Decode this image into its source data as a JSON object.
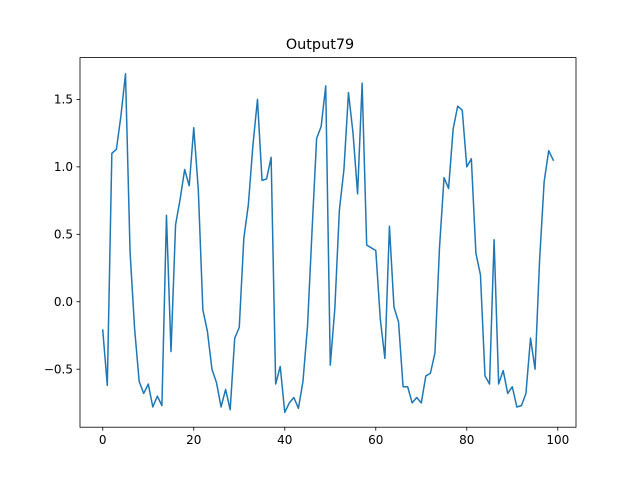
{
  "chart_data": {
    "type": "line",
    "title": "Output79",
    "xlabel": "",
    "ylabel": "",
    "xlim": [
      -5,
      104
    ],
    "ylim": [
      -0.93,
      1.81
    ],
    "x_ticks": [
      0,
      20,
      40,
      60,
      80,
      100
    ],
    "y_ticks": [
      -0.5,
      0.0,
      0.5,
      1.0,
      1.5
    ],
    "y_tick_labels": [
      "−0.5",
      "0.0",
      "0.5",
      "1.0",
      "1.5"
    ],
    "grid": false,
    "legend": "none",
    "series": [
      {
        "color": "#1f77b4",
        "x": [
          0,
          1,
          2,
          3,
          4,
          5,
          6,
          7,
          8,
          9,
          10,
          11,
          12,
          13,
          14,
          15,
          16,
          17,
          18,
          19,
          20,
          21,
          22,
          23,
          24,
          25,
          26,
          27,
          28,
          29,
          30,
          31,
          32,
          33,
          34,
          35,
          36,
          37,
          38,
          39,
          40,
          41,
          42,
          43,
          44,
          45,
          46,
          47,
          48,
          49,
          50,
          51,
          52,
          53,
          54,
          55,
          56,
          57,
          58,
          59,
          60,
          61,
          62,
          63,
          64,
          65,
          66,
          67,
          68,
          69,
          70,
          71,
          72,
          73,
          74,
          75,
          76,
          77,
          78,
          79,
          80,
          81,
          82,
          83,
          84,
          85,
          86,
          87,
          88,
          89,
          90,
          91,
          92,
          93,
          94,
          95,
          96,
          97,
          98,
          99
        ],
        "values": [
          -0.21,
          -0.62,
          1.1,
          1.13,
          1.38,
          1.69,
          0.37,
          -0.2,
          -0.59,
          -0.68,
          -0.61,
          -0.78,
          -0.7,
          -0.77,
          0.64,
          -0.37,
          0.57,
          0.76,
          0.98,
          0.86,
          1.29,
          0.83,
          -0.06,
          -0.22,
          -0.5,
          -0.6,
          -0.78,
          -0.65,
          -0.8,
          -0.27,
          -0.19,
          0.47,
          0.72,
          1.16,
          1.5,
          0.9,
          0.91,
          1.07,
          -0.61,
          -0.48,
          -0.82,
          -0.75,
          -0.71,
          -0.79,
          -0.59,
          -0.18,
          0.53,
          1.21,
          1.3,
          1.6,
          -0.47,
          -0.05,
          0.68,
          0.98,
          1.55,
          1.25,
          0.8,
          1.62,
          0.42,
          0.4,
          0.38,
          -0.13,
          -0.42,
          0.56,
          -0.04,
          -0.15,
          -0.63,
          -0.63,
          -0.75,
          -0.71,
          -0.75,
          -0.55,
          -0.53,
          -0.38,
          0.4,
          0.92,
          0.84,
          1.28,
          1.45,
          1.42,
          1.0,
          1.06,
          0.36,
          0.2,
          -0.55,
          -0.61,
          0.46,
          -0.61,
          -0.51,
          -0.68,
          -0.63,
          -0.78,
          -0.77,
          -0.68,
          -0.27,
          -0.5,
          0.31,
          0.89,
          1.12,
          1.05
        ]
      }
    ]
  }
}
